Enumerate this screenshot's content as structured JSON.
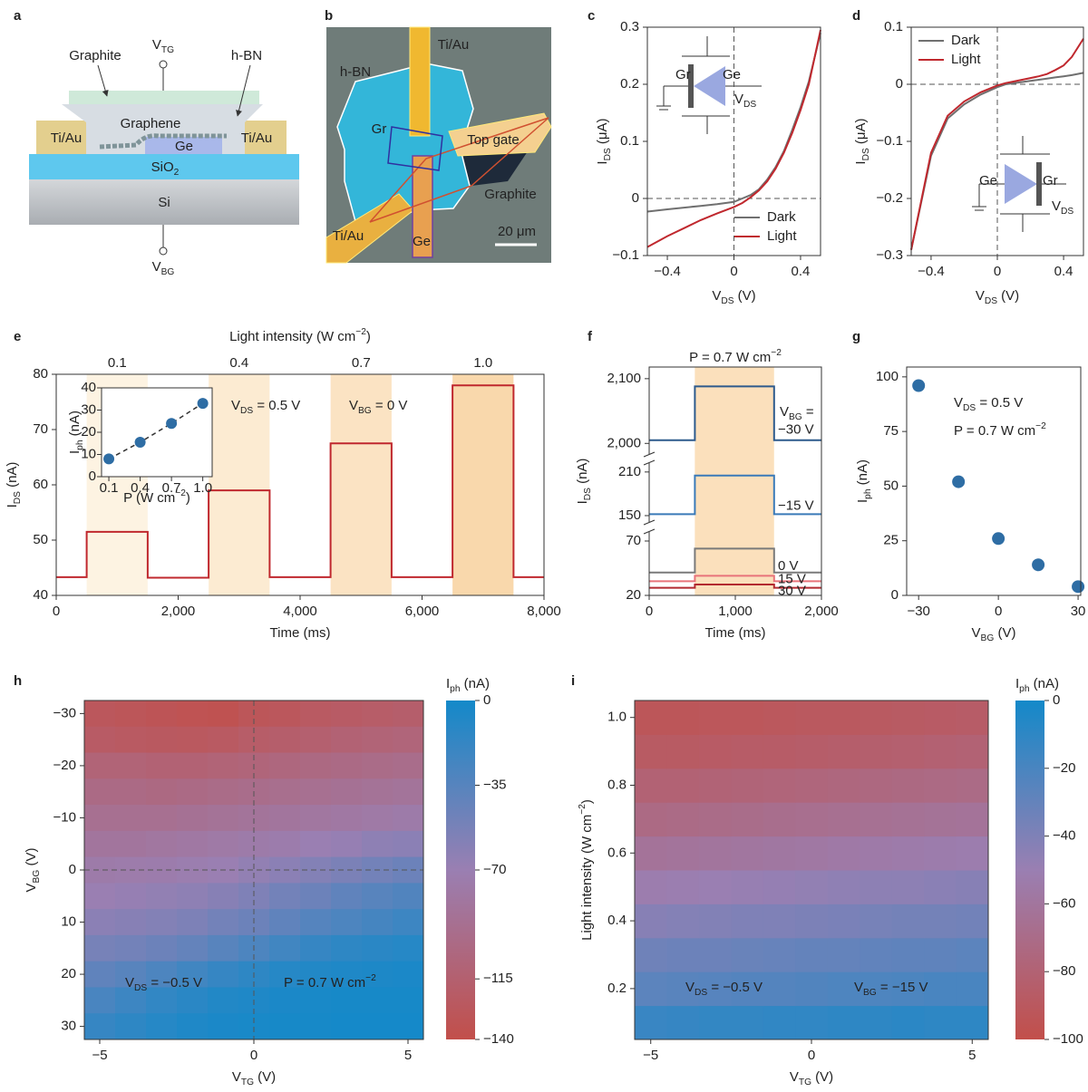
{
  "panel_labels": [
    "a",
    "b",
    "c",
    "d",
    "e",
    "f",
    "g",
    "h",
    "i"
  ],
  "diagram_a": {
    "labels": {
      "graphite": "Graphite",
      "v_tg": [
        "V",
        {
          "sub": "TG"
        }
      ],
      "hbn": "h-BN",
      "graphene": "Graphene",
      "tiau_left": "Ti/Au",
      "ge": "Ge",
      "tiau_right": "Ti/Au",
      "sio2": [
        "SiO",
        {
          "sub": "2"
        }
      ],
      "si": "Si",
      "v_bg": [
        "V",
        {
          "sub": "BG"
        }
      ]
    }
  },
  "micrograph_b": {
    "labels": {
      "hbn": "h-BN",
      "tiau_top": "Ti/Au",
      "gr": "Gr",
      "top_gate": "Top gate",
      "graphite": "Graphite",
      "tiau_bottom": "Ti/Au",
      "ge": "Ge",
      "scale": "20 μm"
    }
  },
  "chart_data": [
    {
      "type": "line",
      "xlabel": [
        "V",
        {
          "sub": "DS"
        },
        " (V)"
      ],
      "ylabel": [
        "I",
        {
          "sub": "DS"
        },
        " (μA)"
      ],
      "inset_labels": [
        "Gr",
        "Ge",
        [
          "V",
          {
            "sub": "DS"
          }
        ]
      ],
      "legend": "lower right",
      "zero_lines": true,
      "xlim": [
        -0.52,
        0.52
      ],
      "xticks": [
        {
          "value": -0.4,
          "label": "−0.4"
        },
        0,
        0.4
      ],
      "ylim": [
        -0.1,
        0.3
      ],
      "yticks": [
        {
          "value": -0.1,
          "label": "−0.1"
        },
        0,
        0.1,
        0.2,
        0.3
      ],
      "x": [
        -0.52,
        -0.4,
        -0.3,
        -0.2,
        -0.1,
        0,
        0.05,
        0.1,
        0.15,
        0.2,
        0.25,
        0.3,
        0.35,
        0.4,
        0.45,
        0.52
      ],
      "series": [
        {
          "name": "Dark",
          "color": "#707070",
          "values": [
            -0.023,
            -0.019,
            -0.016,
            -0.013,
            -0.01,
            -0.006,
            0,
            0.006,
            0.016,
            0.033,
            0.055,
            0.083,
            0.12,
            0.16,
            0.205,
            0.29
          ]
        },
        {
          "name": "Light",
          "color": "#c0282e",
          "values": [
            -0.085,
            -0.066,
            -0.052,
            -0.038,
            -0.026,
            -0.015,
            -0.008,
            0.002,
            0.014,
            0.03,
            0.052,
            0.08,
            0.115,
            0.155,
            0.2,
            0.295
          ]
        }
      ]
    },
    {
      "type": "line",
      "xlabel": [
        "V",
        {
          "sub": "DS"
        },
        " (V)"
      ],
      "ylabel": [
        "I",
        {
          "sub": "DS"
        },
        " (μA)"
      ],
      "inset_labels": [
        "Ge",
        "Gr",
        [
          "V",
          {
            "sub": "DS"
          }
        ]
      ],
      "legend": "upper left",
      "zero_lines": true,
      "xlim": [
        -0.52,
        0.52
      ],
      "xticks": [
        {
          "value": -0.4,
          "label": "−0.4"
        },
        0,
        0.4
      ],
      "ylim": [
        -0.3,
        0.1
      ],
      "yticks": [
        {
          "value": -0.3,
          "label": "−0.3"
        },
        {
          "value": -0.2,
          "label": "−0.2"
        },
        {
          "value": -0.1,
          "label": "−0.1"
        },
        0,
        0.1
      ],
      "x": [
        -0.52,
        -0.4,
        -0.3,
        -0.2,
        -0.1,
        0,
        0.05,
        0.1,
        0.15,
        0.2,
        0.25,
        0.3,
        0.35,
        0.4,
        0.45,
        0.52
      ],
      "series": [
        {
          "name": "Dark",
          "color": "#707070",
          "values": [
            -0.29,
            -0.125,
            -0.06,
            -0.035,
            -0.018,
            -0.005,
            0,
            0.002,
            0.004,
            0.006,
            0.008,
            0.01,
            0.012,
            0.014,
            0.016,
            0.02
          ]
        },
        {
          "name": "Light",
          "color": "#c0282e",
          "values": [
            -0.29,
            -0.12,
            -0.055,
            -0.03,
            -0.014,
            -0.002,
            0.002,
            0.005,
            0.008,
            0.011,
            0.014,
            0.018,
            0.025,
            0.033,
            0.048,
            0.08
          ]
        }
      ]
    },
    {
      "type": "line",
      "xlabel": "Time (ms)",
      "ylabel": [
        "I",
        {
          "sub": "DS"
        },
        " (nA)"
      ],
      "top_axis_label": [
        "Light intensity (W cm",
        {
          "sup": "−2"
        },
        ")"
      ],
      "top_categories": [
        "0.1",
        "0.4",
        "0.7",
        "1.0"
      ],
      "shaded_spans": [
        [
          500,
          1500
        ],
        [
          2500,
          3500
        ],
        [
          4500,
          5500
        ],
        [
          6500,
          7500
        ]
      ],
      "shade_colors": [
        "#fdf3e2",
        "#fcebd2",
        "#fbe3c3",
        "#f9d8ac"
      ],
      "annotations": [
        [
          "V",
          {
            "sub": "DS"
          },
          " = 0.5 V"
        ],
        [
          "V",
          {
            "sub": "BG"
          },
          " = 0 V"
        ]
      ],
      "xlim": [
        0,
        8000
      ],
      "xticks": [
        0,
        {
          "value": 2000,
          "label": "2,000"
        },
        {
          "value": 4000,
          "label": "4,000"
        },
        {
          "value": 6000,
          "label": "6,000"
        },
        {
          "value": 8000,
          "label": "8,000"
        }
      ],
      "ylim": [
        40,
        80
      ],
      "yticks": [
        40,
        50,
        60,
        70,
        80
      ],
      "color": "#c0282e",
      "x": [
        0,
        500,
        500,
        1500,
        1500,
        2500,
        2500,
        3500,
        3500,
        4500,
        4500,
        5500,
        5500,
        6500,
        6500,
        7500,
        7500,
        8000
      ],
      "values": [
        43.3,
        43.3,
        51.5,
        51.5,
        43.2,
        43.2,
        59,
        59,
        43.3,
        43.3,
        67.5,
        67.5,
        43.3,
        43.3,
        78,
        78,
        43.3,
        43.3
      ]
    },
    {
      "type": "scatter",
      "xlabel": [
        "P (W cm",
        {
          "sup": "−2"
        },
        ")"
      ],
      "ylabel": [
        "I",
        {
          "sub": "ph"
        },
        " (nA)"
      ],
      "line_style": "dashed",
      "color": "#2e6da4",
      "xlim": [
        0.03,
        1.09
      ],
      "xticks": [
        0.1,
        0.4,
        0.7,
        {
          "value": 1,
          "label": "1.0"
        }
      ],
      "ylim": [
        0,
        40
      ],
      "yticks": [
        0,
        10,
        20,
        30,
        40
      ],
      "x": [
        0.1,
        0.4,
        0.7,
        1
      ],
      "values": [
        8,
        15.5,
        24,
        33
      ]
    },
    {
      "type": "line",
      "title": [
        "P = 0.7 W cm",
        {
          "sup": "−2"
        }
      ],
      "xlabel": "Time (ms)",
      "ylabel": [
        "I",
        {
          "sub": "DS"
        },
        " (nA)"
      ],
      "legend_title": [
        "V",
        {
          "sub": "BG"
        },
        " ="
      ],
      "shaded_spans": [
        [
          530,
          1450
        ]
      ],
      "shade_colors": [
        "#fbe0bc"
      ],
      "xlim": [
        0,
        2000
      ],
      "xticks": [
        0,
        {
          "value": 1000,
          "label": "1,000"
        },
        {
          "value": 2000,
          "label": "2,000"
        }
      ],
      "y_segments": [
        {
          "ylim": [
            1985,
            2118
          ],
          "yticks": [
            {
              "value": 2000,
              "label": "2,000"
            },
            {
              "value": 2100,
              "label": "2,100"
            }
          ]
        },
        {
          "ylim": [
            142.5,
            221
          ],
          "yticks": [
            150,
            210
          ]
        },
        {
          "ylim": [
            20,
            77.5
          ],
          "yticks": [
            20,
            70
          ]
        }
      ],
      "x": [
        0,
        530,
        530,
        1450,
        1450,
        2000
      ],
      "series": [
        {
          "name": "−30 V",
          "color": "#2d5a8c",
          "segment": 0,
          "values": [
            2005,
            2005,
            2088,
            2088,
            2005,
            2005
          ]
        },
        {
          "name": "−15 V",
          "color": "#3a7ab8",
          "segment": 1,
          "values": [
            152,
            152,
            205,
            205,
            152,
            152
          ]
        },
        {
          "name": "0 V",
          "color": "#7a7a7a",
          "segment": 2,
          "values": [
            41,
            41,
            63,
            63,
            41,
            41
          ]
        },
        {
          "name": "15 V",
          "color": "#e8737a",
          "segment": 2,
          "values": [
            33,
            33,
            38,
            38,
            33,
            33
          ]
        },
        {
          "name": "30 V",
          "color": "#b22a30",
          "segment": 2,
          "values": [
            27,
            27,
            30,
            30,
            27,
            27
          ]
        }
      ]
    },
    {
      "type": "scatter",
      "xlabel": [
        "V",
        {
          "sub": "BG"
        },
        " (V)"
      ],
      "ylabel": [
        "I",
        {
          "sub": "ph"
        },
        " (nA)"
      ],
      "annotations": [
        [
          "V",
          {
            "sub": "DS"
          },
          " = 0.5 V"
        ],
        [
          "P = 0.7 W cm",
          {
            "sup": "−2"
          }
        ]
      ],
      "color": "#2e6da4",
      "xlim": [
        -34.5,
        31
      ],
      "xticks": [
        {
          "value": -30,
          "label": "−30"
        },
        0,
        30
      ],
      "ylim": [
        0,
        104.5
      ],
      "yticks": [
        0,
        25,
        50,
        75,
        100
      ],
      "x": [
        -30,
        -15,
        0,
        15,
        30
      ],
      "values": [
        96,
        52,
        26,
        14,
        4
      ]
    },
    {
      "type": "heatmap",
      "xlabel": [
        "V",
        {
          "sub": "TG"
        },
        " (V)"
      ],
      "ylabel": [
        "V",
        {
          "sub": "BG"
        },
        " (V)"
      ],
      "colorbar_label": [
        "I",
        {
          "sub": "ph"
        },
        " (nA)"
      ],
      "zero_lines": true,
      "annotations": [
        [
          "V",
          {
            "sub": "DS"
          },
          " = −0.5 V"
        ],
        [
          "P = 0.7 W cm",
          {
            "sup": "−2"
          }
        ]
      ],
      "colormap": [
        "#c24f4a",
        "#9a7fb2",
        "#1389c9"
      ],
      "zlim": [
        -140,
        0
      ],
      "zticks": [
        0,
        {
          "value": -35,
          "label": "−35"
        },
        {
          "value": -70,
          "label": "−70"
        },
        {
          "value": -115,
          "label": "−115"
        },
        {
          "value": -140,
          "label": "−140"
        }
      ],
      "xlim": [
        -5.5,
        5.5
      ],
      "xticks": [
        {
          "value": -5,
          "label": "−5"
        },
        0,
        5
      ],
      "ylim": [
        32.5,
        -32.5
      ],
      "yticks": [
        {
          "value": -30,
          "label": "−30"
        },
        {
          "value": -20,
          "label": "−20"
        },
        {
          "value": -10,
          "label": "−10"
        },
        0,
        10,
        20,
        30
      ],
      "x": [
        -5,
        -4,
        -3,
        -2,
        -1,
        0,
        1,
        2,
        3,
        4,
        5
      ],
      "y": [
        -30,
        -25,
        -20,
        -15,
        -10,
        -5,
        0,
        5,
        10,
        15,
        20,
        25,
        30
      ],
      "values": [
        [
          -128,
          -130,
          -132,
          -134,
          -135,
          -130,
          -128,
          -124,
          -122,
          -120,
          -118
        ],
        [
          -122,
          -124,
          -125,
          -126,
          -124,
          -120,
          -118,
          -115,
          -112,
          -110,
          -108
        ],
        [
          -110,
          -110,
          -112,
          -112,
          -110,
          -108,
          -105,
          -102,
          -100,
          -98,
          -96
        ],
        [
          -100,
          -100,
          -102,
          -100,
          -98,
          -96,
          -94,
          -92,
          -90,
          -88,
          -86
        ],
        [
          -92,
          -92,
          -92,
          -90,
          -88,
          -86,
          -84,
          -82,
          -80,
          -78,
          -76
        ],
        [
          -84,
          -84,
          -82,
          -80,
          -78,
          -76,
          -74,
          -70,
          -68,
          -64,
          -62
        ],
        [
          -76,
          -75,
          -74,
          -72,
          -70,
          -66,
          -62,
          -58,
          -54,
          -50,
          -46
        ],
        [
          -70,
          -68,
          -66,
          -64,
          -60,
          -56,
          -50,
          -46,
          -40,
          -36,
          -32
        ],
        [
          -62,
          -60,
          -58,
          -55,
          -50,
          -46,
          -40,
          -34,
          -30,
          -26,
          -22
        ],
        [
          -52,
          -50,
          -46,
          -42,
          -36,
          -30,
          -24,
          -18,
          -14,
          -12,
          -10
        ],
        [
          -40,
          -36,
          -30,
          -24,
          -18,
          -14,
          -10,
          -8,
          -6,
          -5,
          -4
        ],
        [
          -28,
          -22,
          -16,
          -12,
          -8,
          -6,
          -4,
          -3,
          -2,
          -2,
          -2
        ],
        [
          -18,
          -14,
          -10,
          -6,
          -4,
          -3,
          -2,
          -2,
          -1,
          -1,
          -1
        ]
      ]
    },
    {
      "type": "heatmap",
      "xlabel": [
        "V",
        {
          "sub": "TG"
        },
        " (V)"
      ],
      "ylabel": [
        "Light intensity (W cm",
        {
          "sup": "−2"
        },
        ")"
      ],
      "colorbar_label": [
        "I",
        {
          "sub": "ph"
        },
        " (nA)"
      ],
      "annotations": [
        [
          "V",
          {
            "sub": "DS"
          },
          " = −0.5 V"
        ],
        [
          "V",
          {
            "sub": "BG"
          },
          " = −15 V"
        ]
      ],
      "colormap": [
        "#c24f4a",
        "#9a7fb2",
        "#1389c9"
      ],
      "zlim": [
        -100,
        0
      ],
      "zticks": [
        0,
        {
          "value": -20,
          "label": "−20"
        },
        {
          "value": -40,
          "label": "−40"
        },
        {
          "value": -60,
          "label": "−60"
        },
        {
          "value": -80,
          "label": "−80"
        },
        {
          "value": -100,
          "label": "−100"
        }
      ],
      "xlim": [
        -5.5,
        5.5
      ],
      "xticks": [
        {
          "value": -5,
          "label": "−5"
        },
        0,
        5
      ],
      "ylim": [
        0.05,
        1.05
      ],
      "yticks": [
        0.2,
        0.4,
        0.6,
        0.8,
        {
          "value": 1,
          "label": "1.0"
        }
      ],
      "x": [
        -5,
        -4,
        -3,
        -2,
        -1,
        0,
        1,
        2,
        3,
        4,
        5
      ],
      "y": [
        0.1,
        0.2,
        0.3,
        0.4,
        0.5,
        0.6,
        0.7,
        0.8,
        0.9,
        1
      ],
      "values": [
        [
          -14,
          -13,
          -12,
          -12,
          -11,
          -11,
          -10,
          -10,
          -9,
          -10,
          -10
        ],
        [
          -27,
          -26,
          -25,
          -24,
          -24,
          -23,
          -22,
          -22,
          -21,
          -20,
          -20
        ],
        [
          -34,
          -33,
          -33,
          -32,
          -31,
          -30,
          -30,
          -29,
          -28,
          -28,
          -27
        ],
        [
          -43,
          -42,
          -41,
          -40,
          -40,
          -39,
          -38,
          -37,
          -36,
          -36,
          -35
        ],
        [
          -52,
          -51,
          -50,
          -49,
          -48,
          -47,
          -46,
          -45,
          -45,
          -44,
          -43
        ],
        [
          -62,
          -61,
          -60,
          -59,
          -58,
          -57,
          -56,
          -55,
          -54,
          -53,
          -52
        ],
        [
          -72,
          -71,
          -70,
          -69,
          -68,
          -67,
          -66,
          -65,
          -64,
          -63,
          -62
        ],
        [
          -80,
          -80,
          -79,
          -78,
          -77,
          -76,
          -75,
          -74,
          -73,
          -72,
          -71
        ],
        [
          -88,
          -88,
          -87,
          -86,
          -86,
          -85,
          -84,
          -83,
          -82,
          -81,
          -80
        ],
        [
          -93,
          -93,
          -92,
          -92,
          -91,
          -90,
          -90,
          -89,
          -88,
          -87,
          -86
        ]
      ]
    }
  ]
}
